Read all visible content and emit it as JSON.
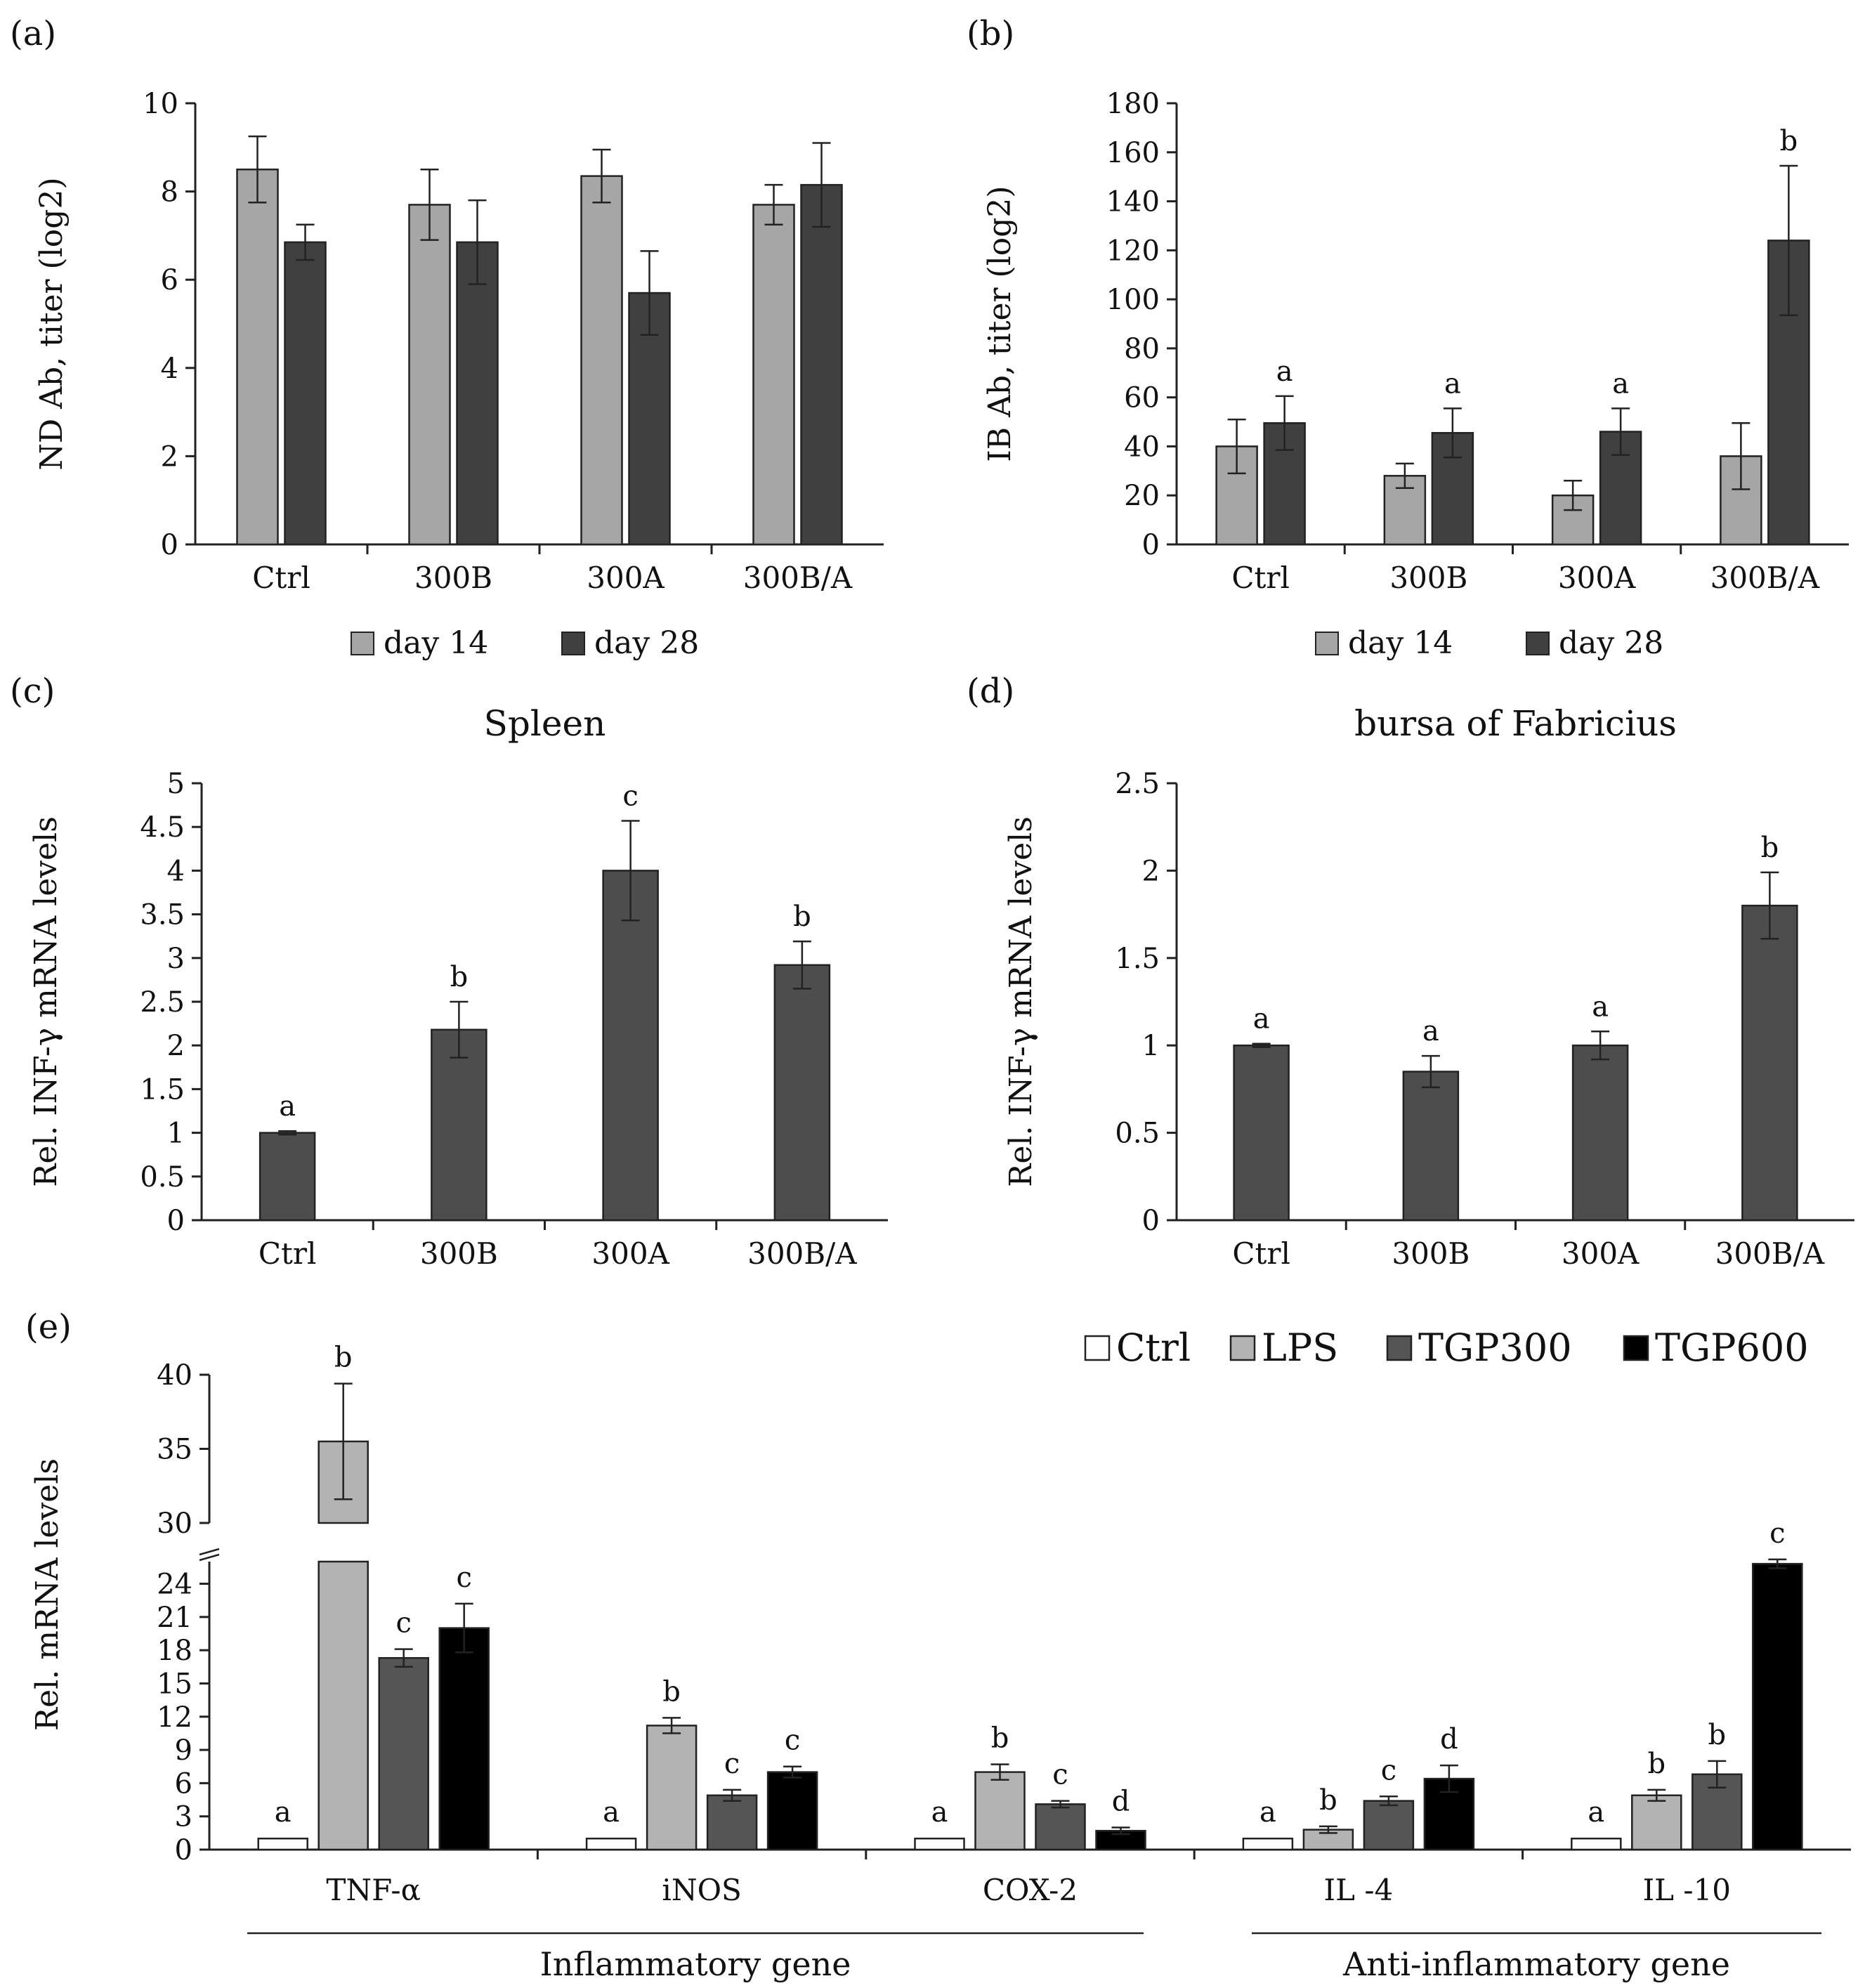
{
  "colors": {
    "day14": "#a6a6a6",
    "day28": "#404040",
    "single": "#4d4d4d",
    "Ctrl": "#ffffff",
    "LPS": "#b3b3b3",
    "TGP300": "#555555",
    "TGP600": "#000000"
  },
  "chart_data": [
    {
      "panel": "(a)",
      "type": "bar",
      "title": "",
      "ylabel": "ND Ab, titer (log2)",
      "ylim": [
        0,
        10
      ],
      "yticks": [
        0,
        2,
        4,
        6,
        8,
        10
      ],
      "categories": [
        "Ctrl",
        "300B",
        "300A",
        "300B/A"
      ],
      "series": [
        {
          "name": "day 14",
          "values": [
            8.5,
            7.7,
            8.35,
            7.7
          ],
          "errors": [
            0.75,
            0.8,
            0.6,
            0.45
          ]
        },
        {
          "name": "day 28",
          "values": [
            6.85,
            6.85,
            5.7,
            8.15
          ],
          "errors": [
            0.4,
            0.95,
            0.95,
            0.95
          ]
        }
      ],
      "sig_labels": [],
      "legend": "bottom"
    },
    {
      "panel": "(b)",
      "type": "bar",
      "title": "",
      "ylabel": "IB Ab, titer (log2)",
      "ylim": [
        0,
        180
      ],
      "yticks": [
        0,
        20,
        40,
        60,
        80,
        100,
        120,
        140,
        160,
        180
      ],
      "categories": [
        "Ctrl",
        "300B",
        "300A",
        "300B/A"
      ],
      "series": [
        {
          "name": "day 14",
          "values": [
            40,
            28,
            20,
            36
          ],
          "errors": [
            11,
            5,
            6,
            13.5
          ]
        },
        {
          "name": "day 28",
          "values": [
            49.5,
            45.5,
            46,
            124
          ],
          "errors": [
            11,
            10,
            9.5,
            30.5
          ]
        }
      ],
      "sig_labels": [
        null,
        "a",
        null,
        "a",
        null,
        "a",
        null,
        "b"
      ],
      "legend": "bottom"
    },
    {
      "panel": "(c)",
      "type": "bar",
      "title": "Spleen",
      "ylabel": "Rel. INF-γ mRNA levels",
      "ylim": [
        0,
        5
      ],
      "yticks": [
        "0",
        "0.5",
        "1",
        "1.5",
        "2",
        "2.5",
        "3",
        "3.5",
        "4",
        "4.5",
        "5"
      ],
      "categories": [
        "Ctrl",
        "300B",
        "300A",
        "300B/A"
      ],
      "series": [
        {
          "name": "",
          "values": [
            1,
            2.18,
            4.0,
            2.92
          ],
          "errors": [
            0.02,
            0.32,
            0.57,
            0.27
          ]
        }
      ],
      "sig_labels": [
        "a",
        "b",
        "c",
        "b"
      ]
    },
    {
      "panel": "(d)",
      "type": "bar",
      "title": "bursa of Fabricius",
      "ylabel": "Rel. INF-γ mRNA levels",
      "ylim": [
        0,
        2.5
      ],
      "yticks": [
        "0",
        "0.5",
        "1",
        "1.5",
        "2",
        "2.5"
      ],
      "categories": [
        "Ctrl",
        "300B",
        "300A",
        "300B/A"
      ],
      "series": [
        {
          "name": "",
          "values": [
            1,
            0.85,
            1.0,
            1.8
          ],
          "errors": [
            0.01,
            0.09,
            0.08,
            0.19
          ]
        }
      ],
      "sig_labels": [
        "a",
        "a",
        "a",
        "b"
      ]
    },
    {
      "panel": "(e)",
      "type": "bar",
      "title": "",
      "ylabel": "Rel. mRNA levels",
      "ylim_lower": [
        0,
        26
      ],
      "yticks_lower": [
        0,
        3,
        6,
        9,
        12,
        15,
        18,
        21,
        24
      ],
      "ylim_upper": [
        30,
        40
      ],
      "yticks_upper": [
        30,
        35,
        40
      ],
      "categories": [
        "TNF-α",
        "iNOS",
        "COX-2",
        "IL -4",
        "IL -10"
      ],
      "groups": [
        {
          "label": "Inflammatory  gene",
          "categories": [
            "TNF-α",
            "iNOS",
            "COX-2"
          ]
        },
        {
          "label": "Anti-inflammatory  gene",
          "categories": [
            "IL -4",
            "IL -10"
          ]
        }
      ],
      "series": [
        {
          "name": "Ctrl",
          "values": [
            1,
            1,
            1,
            1,
            1
          ],
          "errors": [
            0,
            0,
            0,
            0,
            0
          ]
        },
        {
          "name": "LPS",
          "values": [
            35.5,
            11.2,
            7.0,
            1.8,
            4.9
          ],
          "errors": [
            3.9,
            0.7,
            0.7,
            0.3,
            0.5
          ]
        },
        {
          "name": "TGP300",
          "values": [
            17.3,
            4.9,
            4.1,
            4.4,
            6.8
          ],
          "errors": [
            0.8,
            0.5,
            0.3,
            0.4,
            1.2
          ]
        },
        {
          "name": "TGP600",
          "values": [
            20.0,
            7.0,
            1.7,
            6.4,
            25.8
          ],
          "errors": [
            2.2,
            0.5,
            0.3,
            1.2,
            0.4
          ]
        }
      ],
      "sig_labels": [
        [
          "a",
          "b",
          "c",
          "c"
        ],
        [
          "a",
          "b",
          "c",
          "c"
        ],
        [
          "a",
          "b",
          "c",
          "d"
        ],
        [
          "a",
          "b",
          "c",
          "d"
        ],
        [
          "a",
          "b",
          "b",
          "c"
        ]
      ],
      "legend": "top-right"
    }
  ]
}
